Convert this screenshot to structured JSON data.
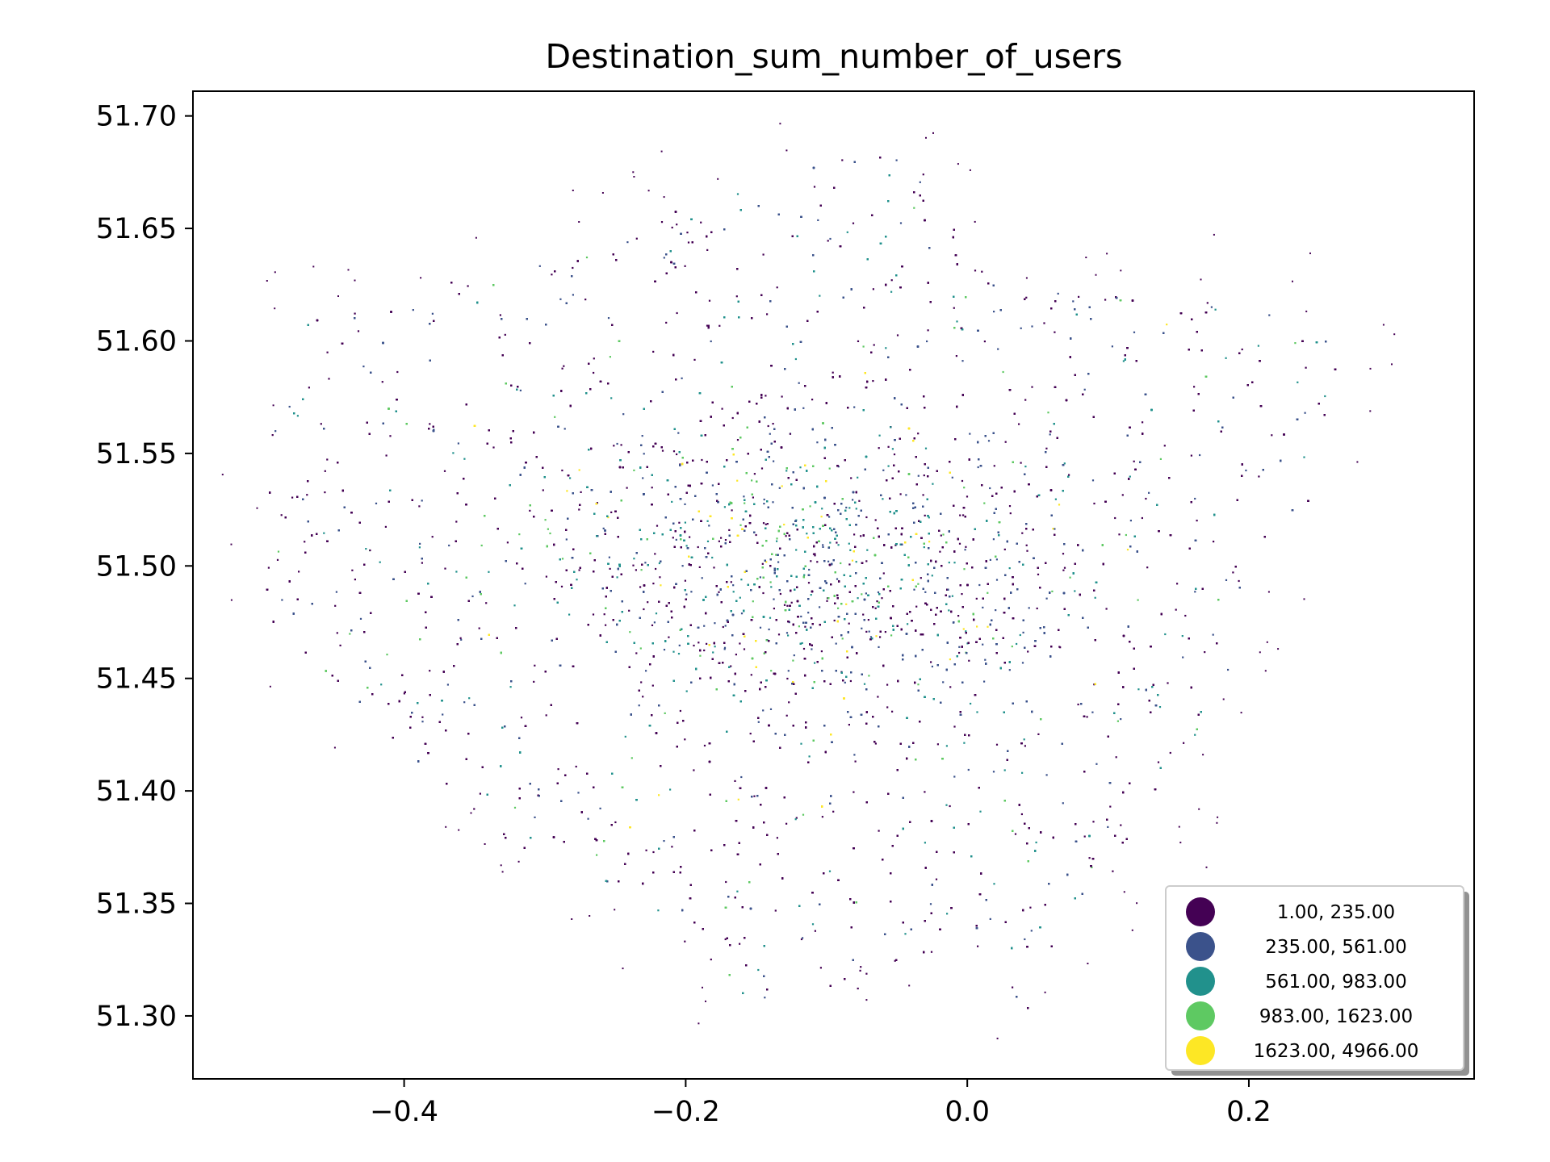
{
  "chart_data": {
    "type": "scatter",
    "title": "Destination_sum_number_of_users",
    "xlabel": "",
    "ylabel": "",
    "xlim": [
      -0.55,
      0.36
    ],
    "ylim": [
      51.272,
      51.711
    ],
    "x_ticks": [
      -0.4,
      -0.2,
      0.0,
      0.2
    ],
    "x_tick_labels": [
      "−0.4",
      "−0.2",
      "0.0",
      "0.2"
    ],
    "y_ticks": [
      51.3,
      51.35,
      51.4,
      51.45,
      51.5,
      51.55,
      51.6,
      51.65,
      51.7
    ],
    "y_tick_labels": [
      "51.30",
      "51.35",
      "51.40",
      "51.45",
      "51.50",
      "51.55",
      "51.60",
      "51.65",
      "51.70"
    ],
    "grid": false,
    "legend_position": "bottom-right",
    "colormap": "viridis",
    "classes": [
      {
        "label": "1.00,  235.00",
        "min": 1.0,
        "max": 235.0,
        "color": "#440154"
      },
      {
        "label": "235.00,  561.00",
        "min": 235.0,
        "max": 561.0,
        "color": "#3b528b"
      },
      {
        "label": "561.00,  983.00",
        "min": 561.0,
        "max": 983.0,
        "color": "#21918c"
      },
      {
        "label": "983.00, 1623.00",
        "min": 983.0,
        "max": 1623.0,
        "color": "#5ec962"
      },
      {
        "label": "1623.00, 4966.00",
        "min": 1623.0,
        "max": 4966.0,
        "color": "#fde725"
      }
    ]
  }
}
